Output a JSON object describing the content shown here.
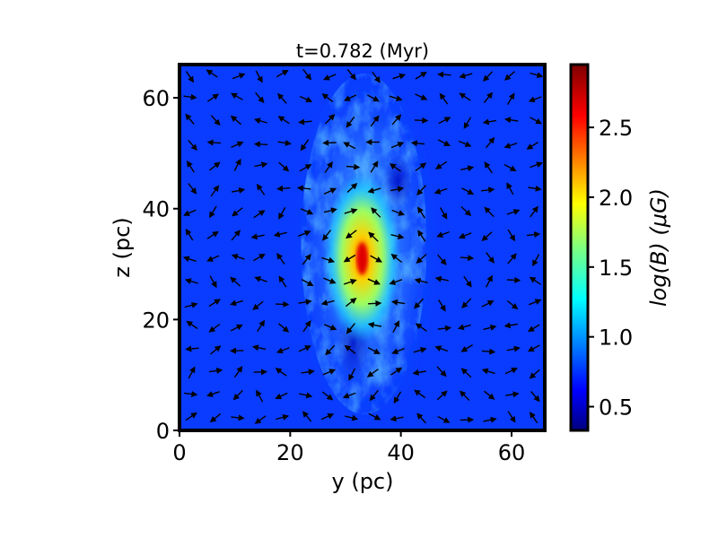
{
  "chart_data": {
    "type": "heatmap",
    "title": "t=0.782 (Myr)",
    "xlabel": "y (pc)",
    "ylabel": "z (pc)",
    "xlim": [
      0,
      66
    ],
    "ylim": [
      0,
      66
    ],
    "xticks": [
      "0",
      "20",
      "40",
      "60"
    ],
    "xtick_values": [
      0,
      20,
      40,
      60
    ],
    "yticks": [
      "0",
      "20",
      "40",
      "60"
    ],
    "ytick_values": [
      0,
      20,
      40,
      60
    ],
    "colorbar": {
      "label": "log(B) (μG)",
      "range": [
        0.33,
        2.95
      ],
      "ticks": [
        "0.5",
        "1.0",
        "1.5",
        "2.0",
        "2.5"
      ],
      "tick_values": [
        0.5,
        1.0,
        1.5,
        2.0,
        2.5
      ],
      "colormap": "jet"
    },
    "field_structure": {
      "background_level": 0.75,
      "filament_center": [
        33,
        32
      ],
      "peak_level": 2.9,
      "peak_location": [
        33,
        31
      ]
    },
    "vector_overlay": "magnetic field direction arrows (black)",
    "colors": {
      "frame": "#000000",
      "arrow": "#000000",
      "background_field": "#0a3cff"
    }
  }
}
